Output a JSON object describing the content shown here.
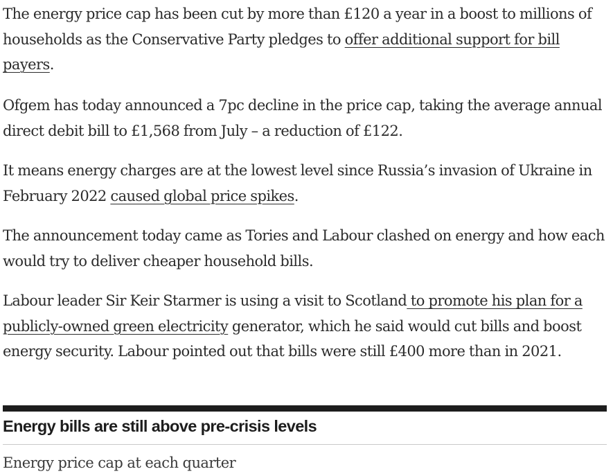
{
  "article": {
    "p1": {
      "text_before": "The energy price cap has been cut by more than £120 a year in a boost to millions of households as the Conservative Party pledges to ",
      "link": "offer additional support for bill payers",
      "text_after": "."
    },
    "p2": {
      "text": "Ofgem has today announced a 7pc decline in the price cap, taking the average annual direct debit bill to £1,568 from July – a reduction of £122."
    },
    "p3": {
      "text_before": "It means energy charges are at the lowest level since Russia’s invasion of Ukraine in February 2022 ",
      "link": "caused global price spikes",
      "text_after": "."
    },
    "p4": {
      "text": "The announcement today came as Tories and Labour clashed on energy and how each would try to deliver cheaper household bills."
    },
    "p5": {
      "text_before": "Labour leader Sir Keir Starmer is using a visit to Scotland",
      "link": " to promote his plan for a publicly-owned green electricity",
      "text_after": " generator, which he said would cut bills and boost energy security. Labour pointed out that bills were still £400 more than in 2021."
    }
  },
  "chart": {
    "title": "Energy bills are still above pre-crisis levels",
    "subtitle": "Energy price cap at each quarter"
  },
  "colors": {
    "text": "#2b2b2b",
    "rule": "#1d1d1d",
    "divider": "#c9c9c9"
  }
}
